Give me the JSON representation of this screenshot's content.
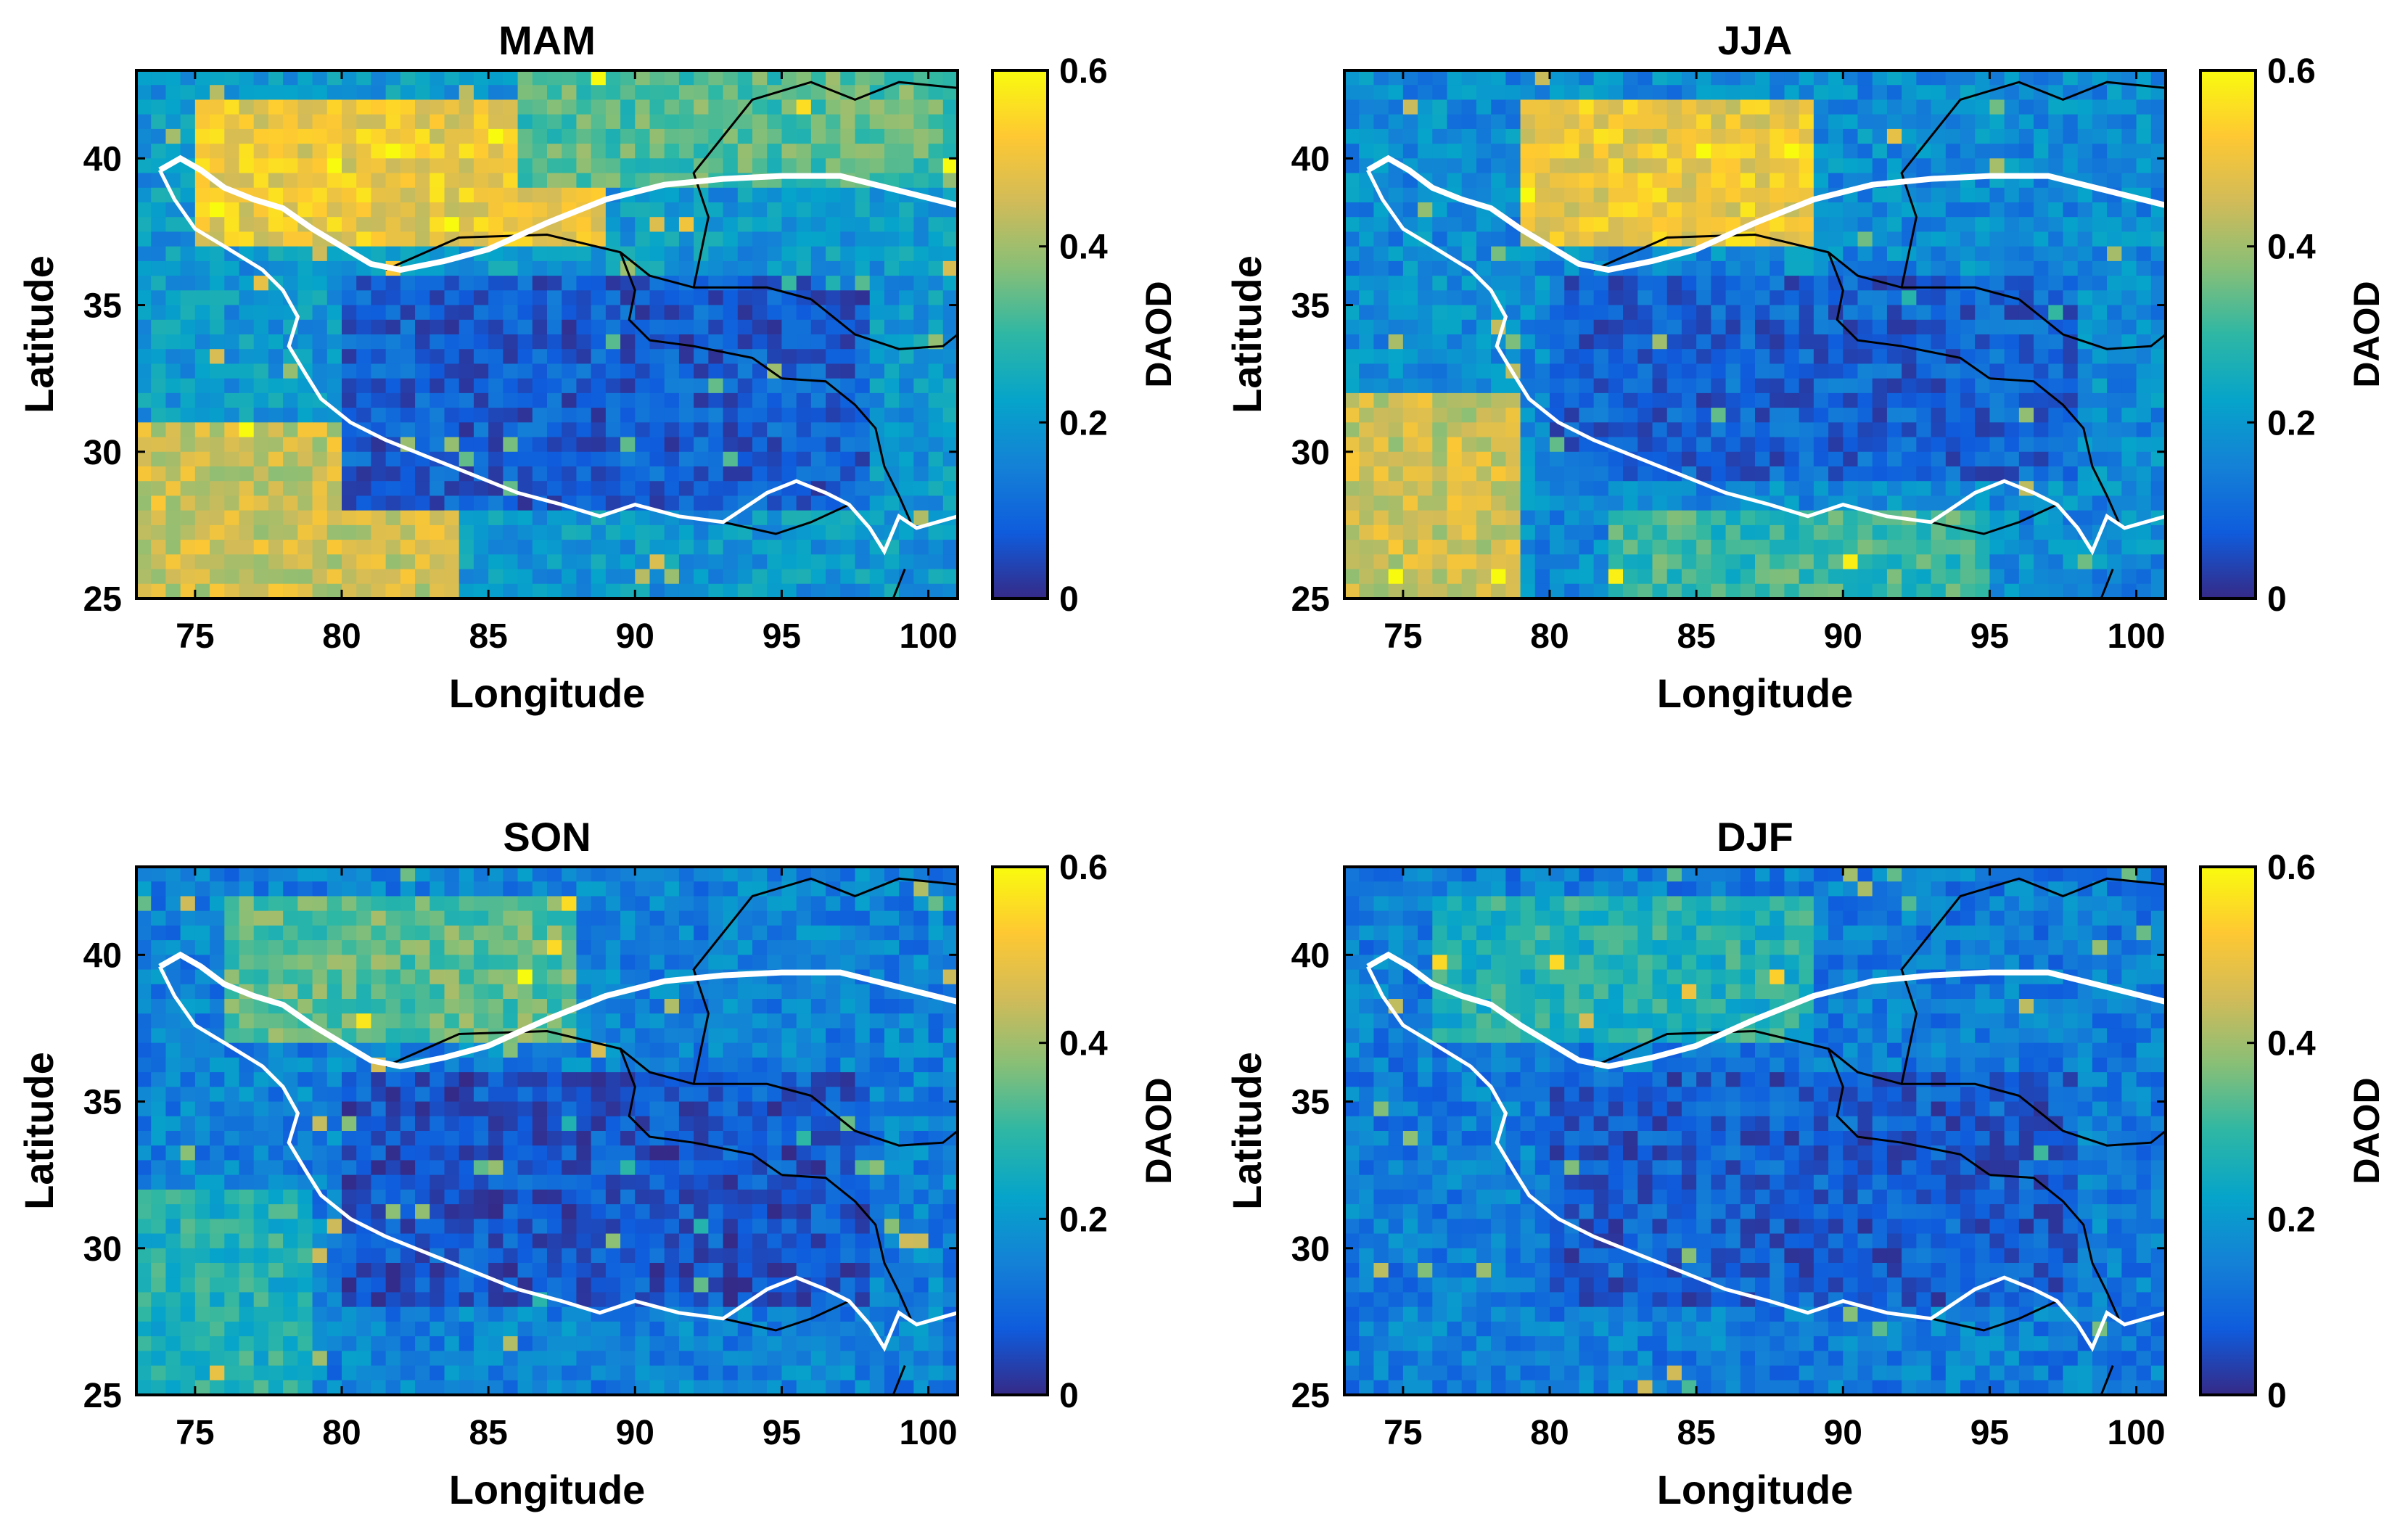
{
  "chart_data": [
    {
      "type": "heatmap",
      "title": "MAM",
      "xlabel": "Longitude",
      "ylabel": "Latitude",
      "xlim": [
        73,
        101
      ],
      "ylim": [
        25,
        43
      ],
      "xticks": [
        75,
        80,
        85,
        90,
        95,
        100
      ],
      "yticks": [
        25,
        30,
        35,
        40
      ],
      "colorbar": {
        "label": "DAOD",
        "range": [
          0,
          0.6
        ],
        "ticks": [
          "0",
          "0.2",
          "0.4",
          "0.6"
        ]
      },
      "regions": [
        {
          "lon": [
            75,
            89
          ],
          "lat": [
            37,
            42
          ],
          "value": 0.5
        },
        {
          "lon": [
            73,
            84
          ],
          "lat": [
            25,
            31
          ],
          "value": 0.45
        },
        {
          "lon": [
            86,
            101
          ],
          "lat": [
            39,
            43
          ],
          "value": 0.33
        },
        {
          "lon": [
            80,
            98
          ],
          "lat": [
            28,
            36
          ],
          "value": 0.08
        }
      ],
      "base_value": 0.2
    },
    {
      "type": "heatmap",
      "title": "JJA",
      "xlabel": "Longitude",
      "ylabel": "Latitude",
      "xlim": [
        73,
        101
      ],
      "ylim": [
        25,
        43
      ],
      "xticks": [
        75,
        80,
        85,
        90,
        95,
        100
      ],
      "yticks": [
        25,
        30,
        35,
        40
      ],
      "colorbar": {
        "label": "DAOD",
        "range": [
          0,
          0.6
        ],
        "ticks": [
          "0",
          "0.2",
          "0.4",
          "0.6"
        ]
      },
      "regions": [
        {
          "lon": [
            79,
            89
          ],
          "lat": [
            37,
            42
          ],
          "value": 0.5
        },
        {
          "lon": [
            73,
            79
          ],
          "lat": [
            25,
            32
          ],
          "value": 0.45
        },
        {
          "lon": [
            82,
            95
          ],
          "lat": [
            25,
            28
          ],
          "value": 0.3
        },
        {
          "lon": [
            80,
            98
          ],
          "lat": [
            29,
            36
          ],
          "value": 0.09
        }
      ],
      "base_value": 0.17
    },
    {
      "type": "heatmap",
      "title": "SON",
      "xlabel": "Longitude",
      "ylabel": "Latitude",
      "xlim": [
        73,
        101
      ],
      "ylim": [
        25,
        43
      ],
      "xticks": [
        75,
        80,
        85,
        90,
        95,
        100
      ],
      "yticks": [
        25,
        30,
        35,
        40
      ],
      "colorbar": {
        "label": "DAOD",
        "range": [
          0,
          0.6
        ],
        "ticks": [
          "0",
          "0.2",
          "0.4",
          "0.6"
        ]
      },
      "regions": [
        {
          "lon": [
            76,
            88
          ],
          "lat": [
            37,
            42
          ],
          "value": 0.34
        },
        {
          "lon": [
            73,
            79
          ],
          "lat": [
            25,
            32
          ],
          "value": 0.27
        },
        {
          "lon": [
            80,
            98
          ],
          "lat": [
            28,
            36
          ],
          "value": 0.07
        }
      ],
      "base_value": 0.15
    },
    {
      "type": "heatmap",
      "title": "DJF",
      "xlabel": "Longitude",
      "ylabel": "Latitude",
      "xlim": [
        73,
        101
      ],
      "ylim": [
        25,
        43
      ],
      "xticks": [
        75,
        80,
        85,
        90,
        95,
        100
      ],
      "yticks": [
        25,
        30,
        35,
        40
      ],
      "colorbar": {
        "label": "DAOD",
        "range": [
          0,
          0.6
        ],
        "ticks": [
          "0",
          "0.2",
          "0.4",
          "0.6"
        ]
      },
      "regions": [
        {
          "lon": [
            76,
            89
          ],
          "lat": [
            37,
            42
          ],
          "value": 0.27
        },
        {
          "lon": [
            80,
            98
          ],
          "lat": [
            28,
            36
          ],
          "value": 0.08
        }
      ],
      "base_value": 0.14
    }
  ]
}
